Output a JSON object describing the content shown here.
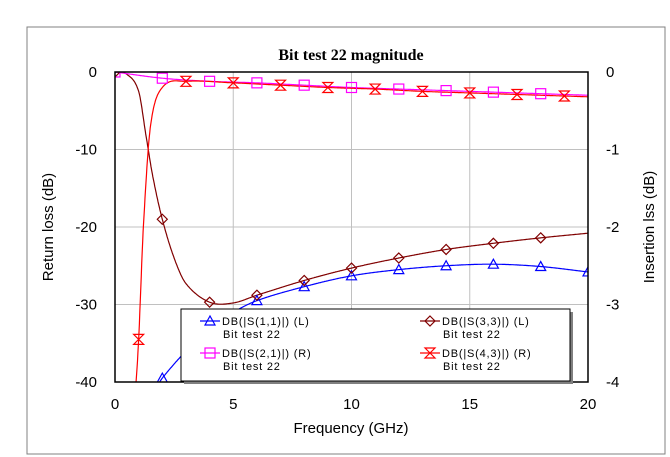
{
  "chart_data": {
    "type": "line",
    "title": "Bit test 22 magnitude",
    "xlabel": "Frequency (GHz)",
    "ylabel_left": "Return loss (dB)",
    "ylabel_right": "Insertion lss (dB)",
    "xlim": [
      0,
      20
    ],
    "ylim_left": [
      -40,
      0
    ],
    "ylim_right": [
      -4,
      0
    ],
    "xticks": [
      0,
      5,
      10,
      15,
      20
    ],
    "yticks_left": [
      0,
      -10,
      -20,
      -30,
      -40
    ],
    "yticks_right": [
      0,
      -1,
      -2,
      -3,
      -4
    ],
    "grid": true,
    "legend_placement": "bottom-center",
    "series": [
      {
        "name": "DB(|S(1,1)|) (L)",
        "sub": "Bit test 22",
        "axis": "left",
        "color": "#0000ff",
        "marker": "triangle",
        "points": [
          [
            1.7,
            -41
          ],
          [
            2,
            -39.5
          ],
          [
            3,
            -36
          ],
          [
            4,
            -33
          ],
          [
            5,
            -31
          ],
          [
            6,
            -29.5
          ],
          [
            8,
            -27.7
          ],
          [
            10,
            -26.3
          ],
          [
            12,
            -25.5
          ],
          [
            14,
            -25
          ],
          [
            16,
            -24.8
          ],
          [
            18,
            -25.1
          ],
          [
            20,
            -25.8
          ]
        ],
        "markers": [
          2,
          4,
          6,
          8,
          10,
          12,
          14,
          16,
          18,
          20
        ]
      },
      {
        "name": "DB(|S(3,3)|) (L)",
        "sub": "Bit test 22",
        "axis": "left",
        "color": "#800000",
        "marker": "diamond",
        "points": [
          [
            0,
            0
          ],
          [
            0.5,
            -0.3
          ],
          [
            1,
            -2.5
          ],
          [
            1.3,
            -8
          ],
          [
            1.6,
            -13.5
          ],
          [
            2,
            -19
          ],
          [
            2.5,
            -24
          ],
          [
            3,
            -27.3
          ],
          [
            4,
            -29.7
          ],
          [
            5,
            -29.8
          ],
          [
            6,
            -28.8
          ],
          [
            8,
            -26.9
          ],
          [
            10,
            -25.3
          ],
          [
            12,
            -24
          ],
          [
            14,
            -22.9
          ],
          [
            16,
            -22.1
          ],
          [
            18,
            -21.4
          ],
          [
            20,
            -20.8
          ]
        ],
        "markers": [
          0,
          2,
          4,
          6,
          8,
          10,
          12,
          14,
          16,
          18
        ]
      },
      {
        "name": "DB(|S(2,1)|) (R)",
        "sub": "Bit test 22",
        "axis": "right",
        "color": "#ff00ff",
        "marker": "square",
        "points": [
          [
            0,
            0
          ],
          [
            2,
            -0.08
          ],
          [
            4,
            -0.12
          ],
          [
            6,
            -0.14
          ],
          [
            8,
            -0.17
          ],
          [
            10,
            -0.2
          ],
          [
            12,
            -0.22
          ],
          [
            14,
            -0.24
          ],
          [
            16,
            -0.26
          ],
          [
            18,
            -0.28
          ],
          [
            20,
            -0.3
          ]
        ],
        "markers": [
          0,
          2,
          4,
          6,
          8,
          10,
          12,
          14,
          16,
          18
        ]
      },
      {
        "name": "DB(|S(4,3)|) (R)",
        "sub": "Bit test 22",
        "axis": "right",
        "color": "#ff0000",
        "marker": "hourglass",
        "points": [
          [
            0.85,
            -4.2
          ],
          [
            1,
            -3.45
          ],
          [
            1.2,
            -2
          ],
          [
            1.5,
            -0.7
          ],
          [
            2,
            -0.2
          ],
          [
            3,
            -0.12
          ],
          [
            5,
            -0.14
          ],
          [
            7,
            -0.17
          ],
          [
            9,
            -0.2
          ],
          [
            11,
            -0.22
          ],
          [
            13,
            -0.25
          ],
          [
            15,
            -0.27
          ],
          [
            17,
            -0.29
          ],
          [
            19,
            -0.31
          ],
          [
            20,
            -0.32
          ]
        ],
        "markers": [
          1,
          3,
          5,
          7,
          9,
          11,
          13,
          15,
          17,
          19
        ]
      }
    ]
  }
}
